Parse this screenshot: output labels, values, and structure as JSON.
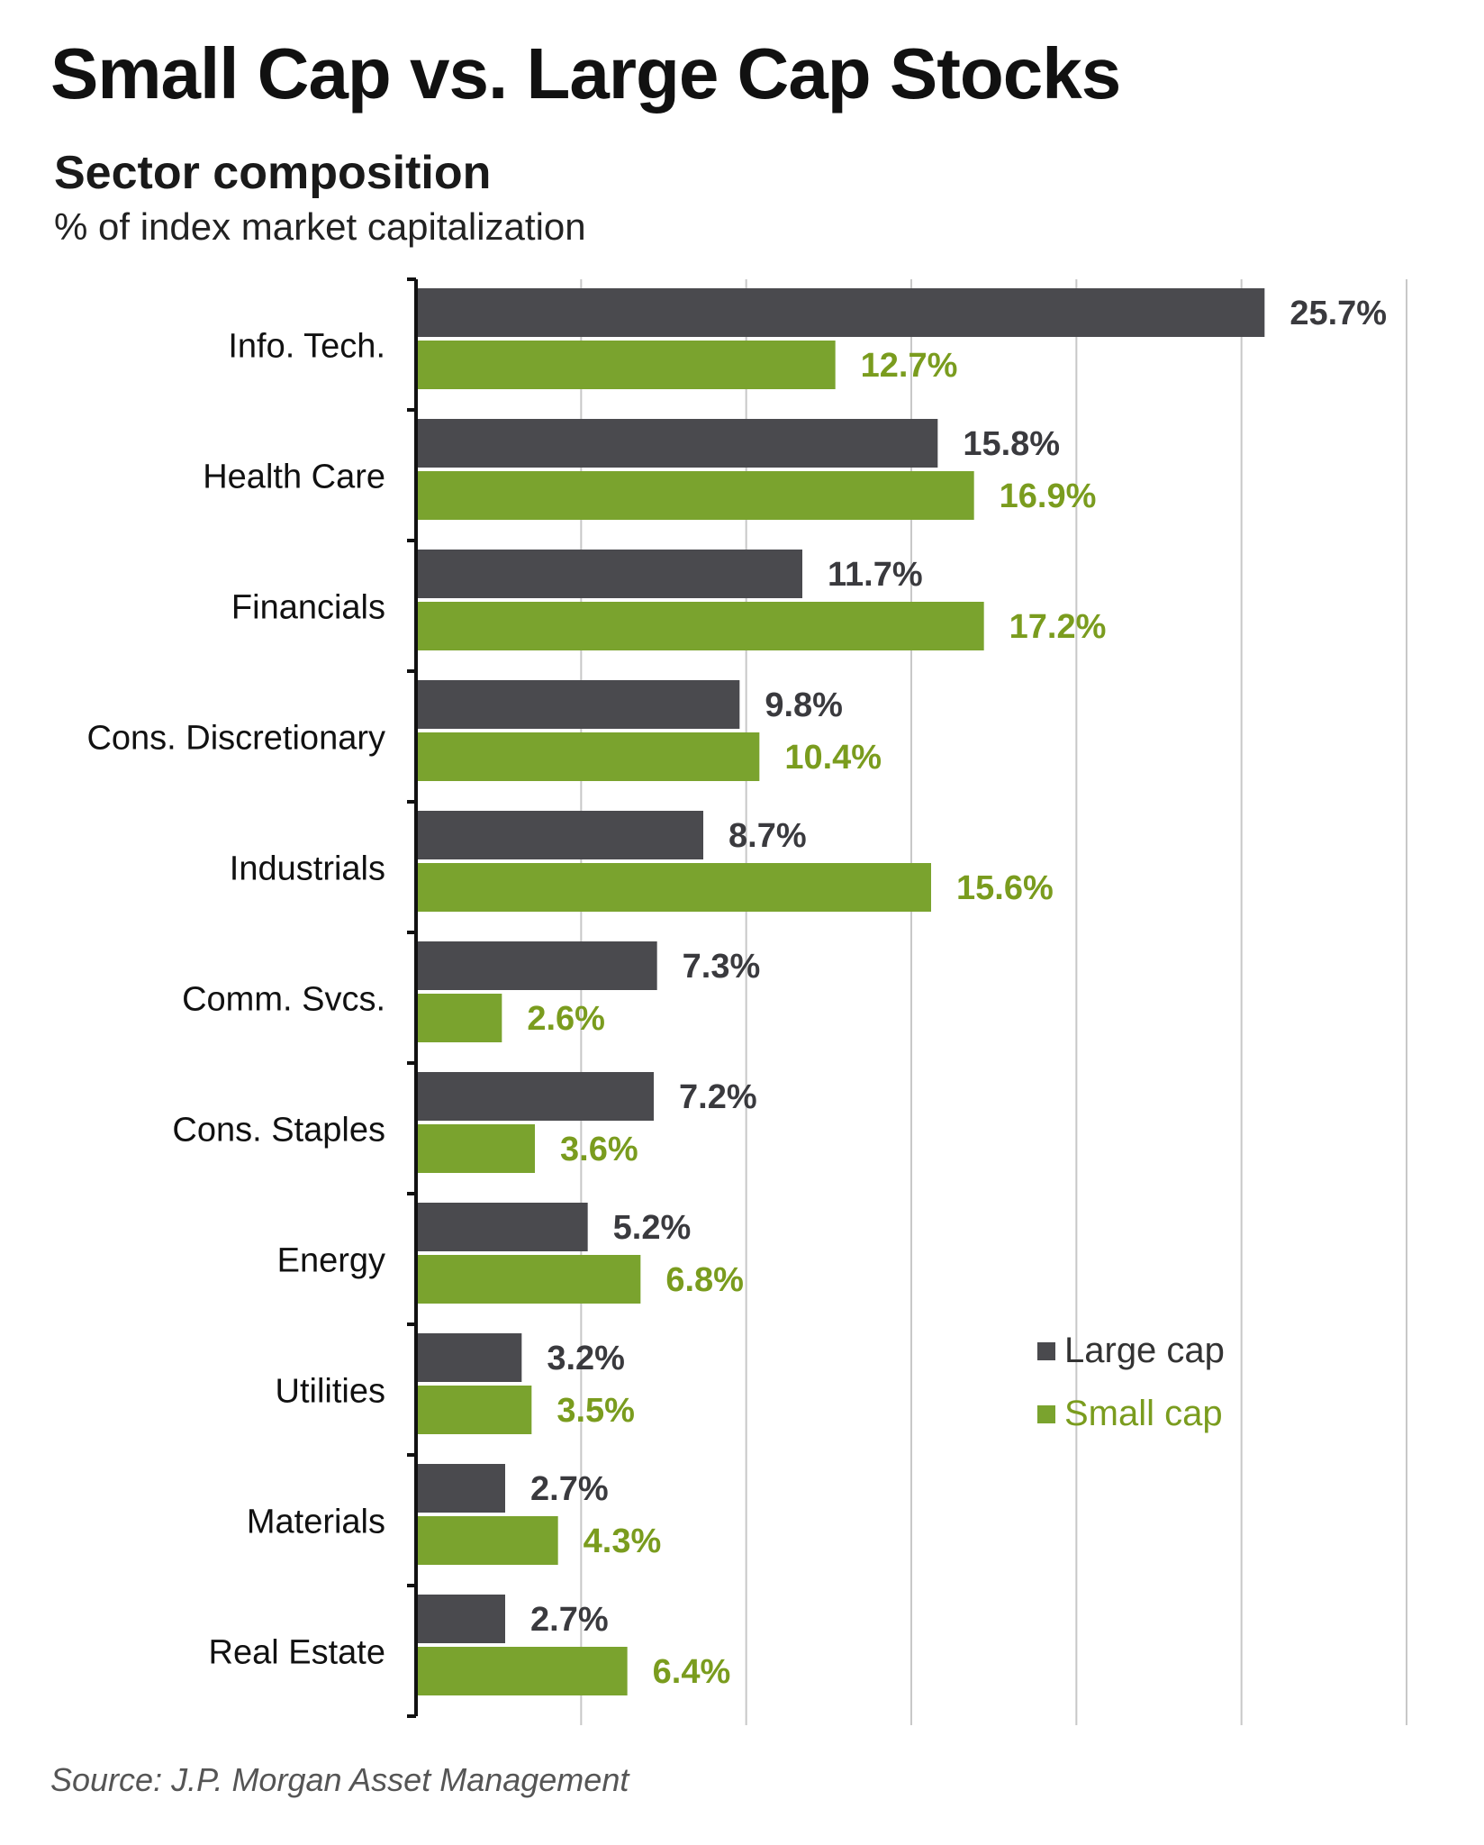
{
  "colors": {
    "large": "#4a4a4e",
    "small": "#7aa32e",
    "small_label": "#7a9c1e",
    "grid": "#c8c8c8",
    "axis": "#111111"
  },
  "chart_data": {
    "type": "bar",
    "orientation": "horizontal",
    "title": "Small Cap vs. Large Cap Stocks",
    "subtitle": "Sector composition",
    "units_label": "% of index market capitalization",
    "xlim": [
      0,
      30
    ],
    "grid": true,
    "legend_position": "bottom-right",
    "categories": [
      "Info. Tech.",
      "Health Care",
      "Financials",
      "Cons. Discretionary",
      "Industrials",
      "Comm. Svcs.",
      "Cons. Staples",
      "Energy",
      "Utilities",
      "Materials",
      "Real Estate"
    ],
    "series": [
      {
        "name": "Large cap",
        "values": [
          25.7,
          15.8,
          11.7,
          9.8,
          8.7,
          7.3,
          7.2,
          5.2,
          3.2,
          2.7,
          2.7
        ],
        "labels": [
          "25.7%",
          "15.8%",
          "11.7%",
          "9.8%",
          "8.7%",
          "7.3%",
          "7.2%",
          "5.2%",
          "3.2%",
          "2.7%",
          "2.7%"
        ]
      },
      {
        "name": "Small cap",
        "values": [
          12.7,
          16.9,
          17.2,
          10.4,
          15.6,
          2.6,
          3.6,
          6.8,
          3.5,
          4.3,
          6.4
        ],
        "labels": [
          "12.7%",
          "16.9%",
          "17.2%",
          "10.4%",
          "15.6%",
          "2.6%",
          "3.6%",
          "6.8%",
          "3.5%",
          "4.3%",
          "6.4%"
        ]
      }
    ]
  },
  "source": "Source: J.P. Morgan Asset Management"
}
